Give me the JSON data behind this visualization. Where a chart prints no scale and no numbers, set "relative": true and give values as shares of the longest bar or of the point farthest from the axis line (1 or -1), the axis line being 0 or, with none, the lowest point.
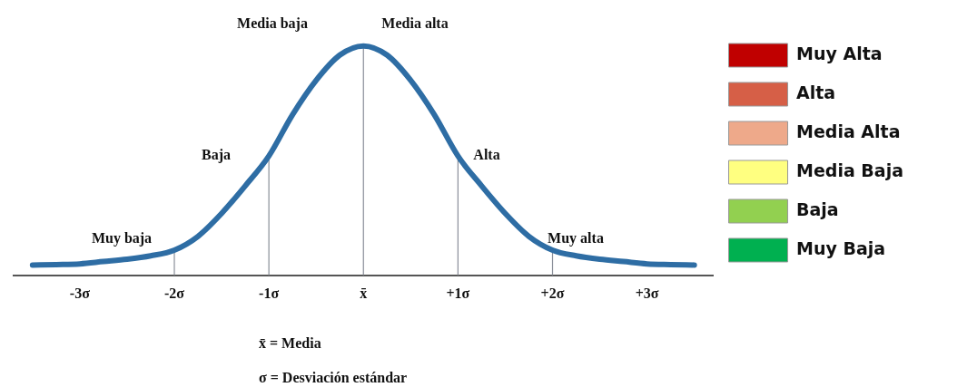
{
  "chart_data": {
    "type": "line",
    "relative": true,
    "x": [
      -3.5,
      -3.25,
      -3,
      -2.75,
      -2.5,
      -2.25,
      -2,
      -1.75,
      -1.5,
      -1.25,
      -1,
      -0.75,
      -0.5,
      -0.25,
      0,
      0.25,
      0.5,
      0.75,
      1,
      1.25,
      1.5,
      1.75,
      2,
      2.25,
      2.5,
      2.75,
      3,
      3.25,
      3.5
    ],
    "xlim": [
      -3.7,
      3.7
    ],
    "xticks": [
      {
        "value": -3,
        "label": "-3σ"
      },
      {
        "value": -2,
        "label": "-2σ"
      },
      {
        "value": -1,
        "label": "-1σ"
      },
      {
        "value": 0,
        "label": "x̄"
      },
      {
        "value": 1,
        "label": "+1σ"
      },
      {
        "value": 2,
        "label": "+2σ"
      },
      {
        "value": 3,
        "label": "+3σ"
      }
    ],
    "series": [
      {
        "color": "#2e6da4",
        "values": [
          0.045,
          0.047,
          0.05,
          0.06,
          0.07,
          0.085,
          0.11,
          0.17,
          0.27,
          0.39,
          0.52,
          0.7,
          0.85,
          0.96,
          1,
          0.96,
          0.85,
          0.7,
          0.52,
          0.39,
          0.27,
          0.17,
          0.11,
          0.085,
          0.07,
          0.06,
          0.05,
          0.047,
          0.045
        ]
      },
      {
        "type": "bar",
        "name": "Muy Alta",
        "color": "#c00000",
        "values": [
          null,
          null,
          null,
          null,
          null,
          null,
          null,
          null,
          null,
          null,
          null,
          null,
          null,
          null,
          null,
          null,
          null,
          null,
          null,
          null,
          null,
          null,
          null,
          null,
          null,
          null,
          null,
          null,
          null
        ]
      },
      {
        "type": "bar",
        "name": "Alta",
        "color": "#d65f47",
        "values": [
          null,
          null,
          null,
          null,
          null,
          null,
          null,
          null,
          null,
          null,
          null,
          null,
          null,
          null,
          null,
          null,
          null,
          null,
          null,
          null,
          null,
          null,
          null,
          null,
          null,
          null,
          null,
          null,
          null
        ]
      },
      {
        "type": "bar",
        "name": "Media Alta",
        "color": "#eea98a",
        "values": [
          null,
          null,
          null,
          null,
          null,
          null,
          null,
          null,
          null,
          null,
          null,
          null,
          null,
          null,
          null,
          null,
          null,
          null,
          null,
          null,
          null,
          null,
          null,
          null,
          null,
          null,
          null,
          null,
          null
        ]
      },
      {
        "type": "bar",
        "name": "Media Baja",
        "color": "#ffff80",
        "values": [
          null,
          null,
          null,
          null,
          null,
          null,
          null,
          null,
          null,
          null,
          null,
          null,
          null,
          null,
          null,
          null,
          null,
          null,
          null,
          null,
          null,
          null,
          null,
          null,
          null,
          null,
          null,
          null,
          null
        ]
      },
      {
        "type": "bar",
        "name": "Baja",
        "color": "#92d050",
        "values": [
          null,
          null,
          null,
          null,
          null,
          null,
          null,
          null,
          null,
          null,
          null,
          null,
          null,
          null,
          null,
          null,
          null,
          null,
          null,
          null,
          null,
          null,
          null,
          null,
          null,
          null,
          null,
          null,
          null
        ]
      },
      {
        "type": "bar",
        "name": "Muy Baja",
        "color": "#00b050",
        "values": [
          null,
          null,
          null,
          null,
          null,
          null,
          null,
          null,
          null,
          null,
          null,
          null,
          null,
          null,
          null,
          null,
          null,
          null,
          null,
          null,
          null,
          null,
          null,
          null,
          null,
          null,
          null,
          null,
          null
        ]
      }
    ],
    "ref_lines": [
      {
        "axis": "x",
        "value": -2
      },
      {
        "axis": "x",
        "value": -1
      },
      {
        "axis": "x",
        "value": 0
      },
      {
        "axis": "x",
        "value": 1
      },
      {
        "axis": "x",
        "value": 2
      }
    ],
    "annotations": [
      "Media baja",
      "Media alta",
      "Baja",
      "Alta",
      "Muy baja",
      "Muy alta",
      "x̄ = Media",
      "σ = Desviación estándar"
    ],
    "grid": false,
    "legend": "right",
    "marker": "none",
    "line_style": "solid"
  }
}
